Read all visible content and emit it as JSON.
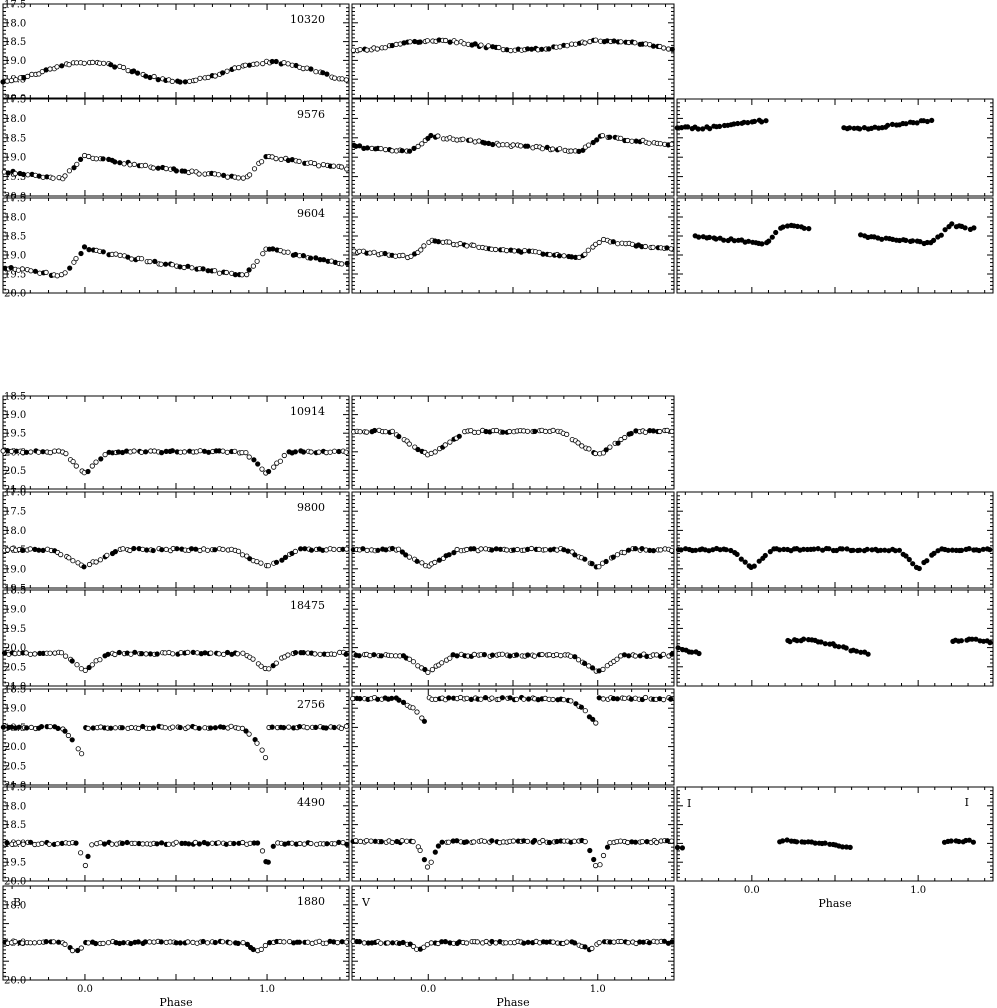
{
  "x_axis": {
    "title": "Phase",
    "range": [
      -0.45,
      1.45
    ],
    "tick_labels": [
      "0.0",
      "1.0"
    ],
    "tick_values": [
      0.0,
      1.0
    ]
  },
  "columns": [
    {
      "filter": "B"
    },
    {
      "filter": "V"
    },
    {
      "filter": "I"
    }
  ],
  "marker_styles": {
    "open": "open circle",
    "filled": "filled circle"
  },
  "colors": {
    "ink": "#000000",
    "background": "#ffffff"
  },
  "chart_data": [
    {
      "type": "scatter",
      "star": "10320",
      "ylim": [
        20.0,
        17.5
      ],
      "yticks": [
        "17.5",
        "18.0",
        "18.5",
        "19.0",
        "19.5",
        "20.0"
      ],
      "panels": [
        {
          "filter": "B",
          "label": "10320",
          "profile": "sinusoid",
          "mean": 19.3,
          "amplitude": 0.25,
          "peak_phase": 0.02,
          "filled_fraction": 0.3
        },
        {
          "filter": "V",
          "label": "",
          "profile": "sinusoid",
          "mean": 18.6,
          "amplitude": 0.12,
          "peak_phase": 0.05,
          "filled_fraction": 0.4
        },
        null
      ]
    },
    {
      "type": "scatter",
      "star": "9576",
      "ylim": [
        20.0,
        17.5
      ],
      "yticks": [
        "17.5",
        "18.0",
        "18.5",
        "19.0",
        "19.5",
        "20.0"
      ],
      "panels": [
        {
          "filter": "B",
          "label": "9576",
          "profile": "pulsator",
          "min_mag": 19.55,
          "max_mag": 18.95,
          "peak_phase": 0.0,
          "filled_fraction": 0.35
        },
        {
          "filter": "V",
          "label": "",
          "profile": "pulsator",
          "min_mag": 18.85,
          "max_mag": 18.45,
          "peak_phase": 0.02,
          "filled_fraction": 0.35
        },
        {
          "filter": "I",
          "label": "",
          "profile": "sinusoid",
          "mean": 18.15,
          "amplitude": 0.1,
          "peak_phase": 0.15,
          "filled_fraction": 1.0,
          "phase_window": [
            -0.45,
            0.1,
            0.55,
            1.1
          ]
        }
      ]
    },
    {
      "type": "scatter",
      "star": "9604",
      "ylim": [
        20.0,
        17.5
      ],
      "yticks": [
        "17.5",
        "18.0",
        "18.5",
        "19.0",
        "19.5",
        "20.0"
      ],
      "panels": [
        {
          "filter": "B",
          "label": "9604",
          "profile": "pulsator",
          "min_mag": 19.55,
          "max_mag": 18.8,
          "peak_phase": 0.0,
          "filled_fraction": 0.35
        },
        {
          "filter": "V",
          "label": "",
          "profile": "pulsator",
          "min_mag": 19.05,
          "max_mag": 18.6,
          "peak_phase": 0.02,
          "filled_fraction": 0.35
        },
        {
          "filter": "I",
          "label": "",
          "profile": "pulsator",
          "min_mag": 18.7,
          "max_mag": 18.2,
          "peak_phase": 0.2,
          "filled_fraction": 1.0,
          "phase_window": [
            -0.35,
            0.35,
            0.65,
            1.35
          ]
        }
      ]
    },
    {
      "type": "scatter",
      "star": "10914",
      "ylim": [
        21.0,
        18.5
      ],
      "yticks": [
        "18.5",
        "19.0",
        "19.5",
        "20.0",
        "20.5",
        "21.0"
      ],
      "panels": [
        {
          "filter": "B",
          "label": "10914",
          "profile": "eclipse",
          "base": 20.0,
          "depth": 0.6,
          "width": 0.12,
          "filled_fraction": 0.4
        },
        {
          "filter": "V",
          "label": "",
          "profile": "eclipse",
          "base": 19.45,
          "depth": 0.65,
          "width": 0.22,
          "filled_fraction": 0.35
        },
        null
      ]
    },
    {
      "type": "scatter",
      "star": "9800",
      "ylim": [
        19.5,
        17.0
      ],
      "yticks": [
        "17.0",
        "17.5",
        "18.0",
        "18.5",
        "19.0",
        "19.5"
      ],
      "panels": [
        {
          "filter": "B",
          "label": "9800",
          "profile": "eclipse",
          "base": 18.5,
          "depth": 0.45,
          "width": 0.18,
          "filled_fraction": 0.35
        },
        {
          "filter": "V",
          "label": "",
          "profile": "eclipse",
          "base": 18.5,
          "depth": 0.45,
          "width": 0.18,
          "filled_fraction": 0.35
        },
        {
          "filter": "I",
          "label": "",
          "profile": "eclipse",
          "base": 18.5,
          "depth": 0.5,
          "width": 0.12,
          "filled_fraction": 1.0,
          "phase_window": [
            -0.45,
            0.55,
            0.55,
            1.45
          ]
        }
      ]
    },
    {
      "type": "scatter",
      "star": "18475",
      "ylim": [
        21.0,
        18.5
      ],
      "yticks": [
        "18.5",
        "19.0",
        "19.5",
        "20.0",
        "20.5",
        "21.0"
      ],
      "panels": [
        {
          "filter": "B",
          "label": "18475",
          "profile": "eclipse",
          "base": 20.15,
          "depth": 0.45,
          "width": 0.12,
          "filled_fraction": 0.35
        },
        {
          "filter": "V",
          "label": "",
          "profile": "eclipse",
          "base": 20.2,
          "depth": 0.45,
          "width": 0.15,
          "filled_fraction": 0.35
        },
        {
          "filter": "I",
          "label": "",
          "profile": "sinusoid",
          "mean": 20.0,
          "amplitude": 0.2,
          "peak_phase": 0.3,
          "filled_fraction": 1.0,
          "phase_window": [
            -0.45,
            -0.3,
            0.2,
            0.7,
            1.2,
            1.45
          ]
        }
      ]
    },
    {
      "type": "scatter",
      "star": "2756",
      "ylim": [
        21.0,
        18.5
      ],
      "yticks": [
        "18.5",
        "19.0",
        "19.5",
        "20.0",
        "20.5",
        "21.0"
      ],
      "panels": [
        {
          "filter": "B",
          "label": "2756",
          "profile": "descent",
          "base": 19.5,
          "depth": 0.85,
          "start": -0.15,
          "filled_fraction": 0.45
        },
        {
          "filter": "V",
          "label": "",
          "profile": "descent",
          "base": 18.75,
          "depth": 0.7,
          "start": -0.2,
          "filled_fraction": 0.45
        },
        null
      ]
    },
    {
      "type": "scatter",
      "star": "4490",
      "ylim": [
        20.0,
        17.5
      ],
      "yticks": [
        "17.5",
        "18.0",
        "18.5",
        "19.0",
        "19.5",
        "20.0"
      ],
      "panels": [
        {
          "filter": "B",
          "label": "4490",
          "profile": "eclipse",
          "base": 19.0,
          "depth": 0.6,
          "width": 0.04,
          "filled_fraction": 0.35
        },
        {
          "filter": "V",
          "label": "",
          "profile": "eclipse",
          "base": 18.95,
          "depth": 0.75,
          "width": 0.07,
          "filled_fraction": 0.35
        },
        {
          "filter": "I",
          "label": "I",
          "profile": "sinusoid",
          "mean": 19.05,
          "amplitude": 0.12,
          "peak_phase": 0.25,
          "filled_fraction": 1.0,
          "phase_window": [
            -0.45,
            -0.4,
            0.15,
            0.6,
            1.15,
            1.35
          ]
        }
      ]
    },
    {
      "type": "scatter",
      "star": "1880",
      "ylim": [
        20.0,
        17.5
      ],
      "yticks": [
        "18.0",
        "19.0",
        "20.0"
      ],
      "panels": [
        {
          "filter": "B",
          "label": "1880",
          "corner_label": "B",
          "profile": "dip",
          "base": 19.0,
          "depth": 0.35,
          "start": -0.15,
          "filled_fraction": 0.45
        },
        {
          "filter": "V",
          "label": "",
          "corner_label": "V",
          "profile": "dip",
          "base": 19.0,
          "depth": 0.3,
          "start": -0.15,
          "filled_fraction": 0.5
        },
        null
      ]
    }
  ]
}
